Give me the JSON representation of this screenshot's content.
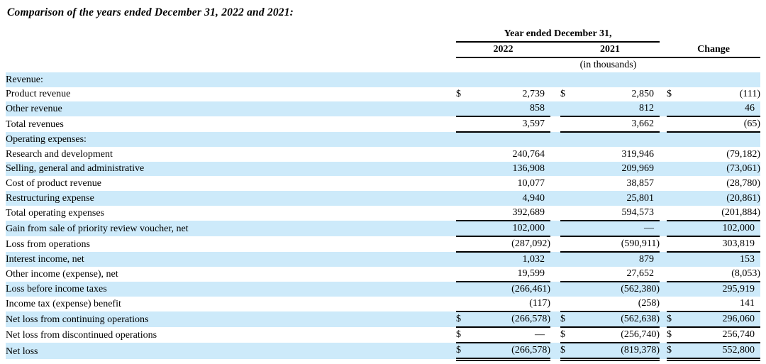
{
  "title": "Comparison of the years ended December 31, 2022 and 2021:",
  "colors": {
    "row_shade": "#cdeafa",
    "text": "#000000",
    "rule": "#000000"
  },
  "table": {
    "currency_symbol": "$",
    "header": {
      "span_label": "Year ended December 31,",
      "col_2022": "2022",
      "col_2021": "2021",
      "col_change": "Change",
      "units_note": "(in thousands)"
    },
    "rows": [
      {
        "label": "Revenue:",
        "indent": 0,
        "shaded": true,
        "dollar": false,
        "v2022": "",
        "v2021": "",
        "vchange": "",
        "border": "none"
      },
      {
        "label": "Product revenue",
        "indent": 1,
        "shaded": false,
        "dollar": true,
        "v2022": "2,739",
        "v2021": "2,850",
        "vchange": "(111)",
        "border": "none"
      },
      {
        "label": "Other revenue",
        "indent": 1,
        "shaded": true,
        "dollar": false,
        "v2022": "858",
        "v2021": "812",
        "vchange": "46",
        "border": "single"
      },
      {
        "label": "Total revenues",
        "indent": 2,
        "shaded": false,
        "dollar": false,
        "v2022": "3,597",
        "v2021": "3,662",
        "vchange": "(65)",
        "border": "single"
      },
      {
        "label": "Operating expenses:",
        "indent": 0,
        "shaded": true,
        "dollar": false,
        "v2022": "",
        "v2021": "",
        "vchange": "",
        "border": "none"
      },
      {
        "label": "Research and development",
        "indent": 1,
        "shaded": false,
        "dollar": false,
        "v2022": "240,764",
        "v2021": "319,946",
        "vchange": "(79,182)",
        "border": "none"
      },
      {
        "label": "Selling, general and administrative",
        "indent": 1,
        "shaded": true,
        "dollar": false,
        "v2022": "136,908",
        "v2021": "209,969",
        "vchange": "(73,061)",
        "border": "none"
      },
      {
        "label": "Cost of product revenue",
        "indent": 1,
        "shaded": false,
        "dollar": false,
        "v2022": "10,077",
        "v2021": "38,857",
        "vchange": "(28,780)",
        "border": "none"
      },
      {
        "label": "Restructuring expense",
        "indent": 1,
        "shaded": true,
        "dollar": false,
        "v2022": "4,940",
        "v2021": "25,801",
        "vchange": "(20,861)",
        "border": "none"
      },
      {
        "label": "Total operating expenses",
        "indent": 2,
        "shaded": false,
        "dollar": false,
        "v2022": "392,689",
        "v2021": "594,573",
        "vchange": "(201,884)",
        "border": "single"
      },
      {
        "label": "Gain from sale of priority review voucher, net",
        "indent": 1,
        "shaded": true,
        "dollar": false,
        "v2022": "102,000",
        "v2021": "—",
        "vchange": "102,000",
        "border": "single"
      },
      {
        "label": "Loss from operations",
        "indent": 2,
        "shaded": false,
        "dollar": false,
        "v2022": "(287,092)",
        "v2021": "(590,911)",
        "vchange": "303,819",
        "border": "single"
      },
      {
        "label": "Interest income, net",
        "indent": 0,
        "shaded": true,
        "dollar": false,
        "v2022": "1,032",
        "v2021": "879",
        "vchange": "153",
        "border": "none"
      },
      {
        "label": "Other income (expense), net",
        "indent": 0,
        "shaded": false,
        "dollar": false,
        "v2022": "19,599",
        "v2021": "27,652",
        "vchange": "(8,053)",
        "border": "single"
      },
      {
        "label": "Loss before income taxes",
        "indent": 2,
        "shaded": true,
        "dollar": false,
        "v2022": "(266,461)",
        "v2021": "(562,380)",
        "vchange": "295,919",
        "border": "none"
      },
      {
        "label": "Income tax (expense) benefit",
        "indent": 0,
        "shaded": false,
        "dollar": false,
        "v2022": "(117)",
        "v2021": "(258)",
        "vchange": "141",
        "border": "single"
      },
      {
        "label": "Net loss from continuing operations",
        "indent": 2,
        "shaded": true,
        "dollar": true,
        "v2022": "(266,578)",
        "v2021": "(562,638)",
        "vchange": "296,060",
        "border": "single"
      },
      {
        "label": "Net loss from discontinued operations",
        "indent": 2,
        "shaded": false,
        "dollar": true,
        "v2022": "—",
        "v2021": "(256,740)",
        "vchange": "256,740",
        "border": "single"
      },
      {
        "label": "Net loss",
        "indent": 2,
        "shaded": true,
        "dollar": true,
        "v2022": "(266,578)",
        "v2021": "(819,378)",
        "vchange": "552,800",
        "border": "double"
      }
    ]
  }
}
